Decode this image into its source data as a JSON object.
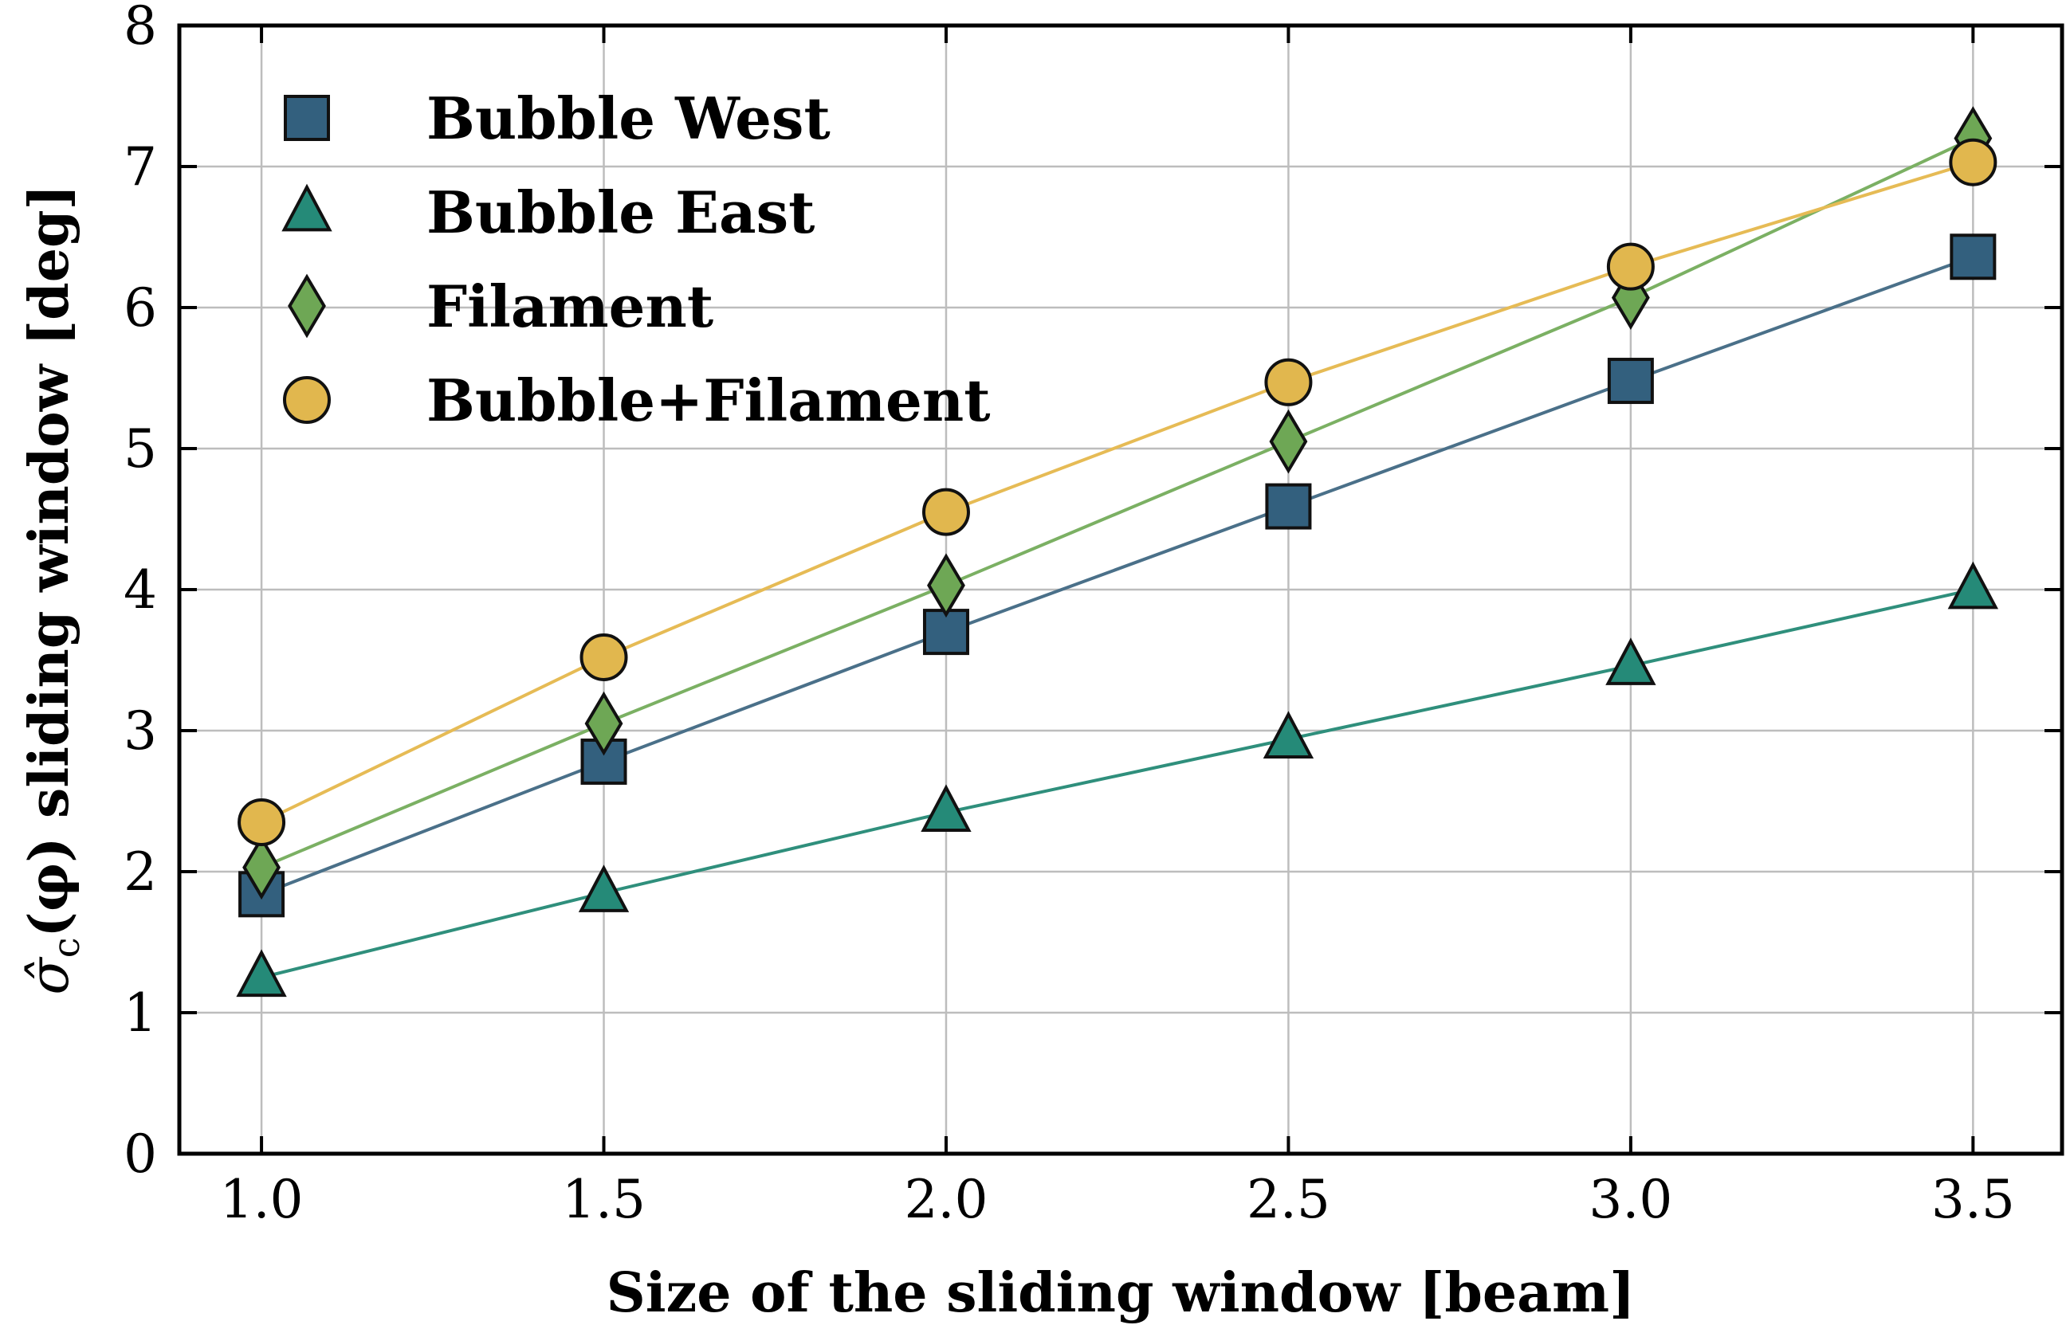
{
  "chart_data": {
    "type": "line",
    "title": "",
    "xlabel": "Size of the sliding window [beam]",
    "ylabel_prefix": "σ̂",
    "ylabel_sub": "c",
    "ylabel_suffix": "(φ) sliding window [deg]",
    "xlim": [
      0.88,
      3.63
    ],
    "ylim": [
      0,
      8
    ],
    "xticks": [
      1.0,
      1.5,
      2.0,
      2.5,
      3.0,
      3.5
    ],
    "xtick_labels": [
      "1.0",
      "1.5",
      "2.0",
      "2.5",
      "3.0",
      "3.5"
    ],
    "yticks": [
      0,
      1,
      2,
      3,
      4,
      5,
      6,
      7,
      8
    ],
    "ytick_labels": [
      "0",
      "1",
      "2",
      "3",
      "4",
      "5",
      "6",
      "7",
      "8"
    ],
    "grid": true,
    "legend_position": "top-left",
    "x": [
      1.0,
      1.5,
      2.0,
      2.5,
      3.0,
      3.5
    ],
    "series": [
      {
        "name": "Bubble West",
        "marker": "square",
        "color": "#33607e",
        "line_color": "#4a7089",
        "values": [
          1.84,
          2.78,
          3.7,
          4.59,
          5.48,
          6.36
        ]
      },
      {
        "name": "Bubble East",
        "marker": "triangle",
        "color": "#258a78",
        "line_color": "#2f8f7c",
        "values": [
          1.25,
          1.85,
          2.42,
          2.94,
          3.46,
          4.0
        ]
      },
      {
        "name": "Filament",
        "marker": "diamond",
        "color": "#6ea755",
        "line_color": "#7bb063",
        "values": [
          2.03,
          3.05,
          4.03,
          5.05,
          6.07,
          7.2
        ]
      },
      {
        "name": "Bubble+Filament",
        "marker": "circle",
        "color": "#e1b74e",
        "line_color": "#e6bb55",
        "values": [
          2.35,
          3.52,
          4.55,
          5.47,
          6.29,
          7.03
        ]
      }
    ]
  }
}
